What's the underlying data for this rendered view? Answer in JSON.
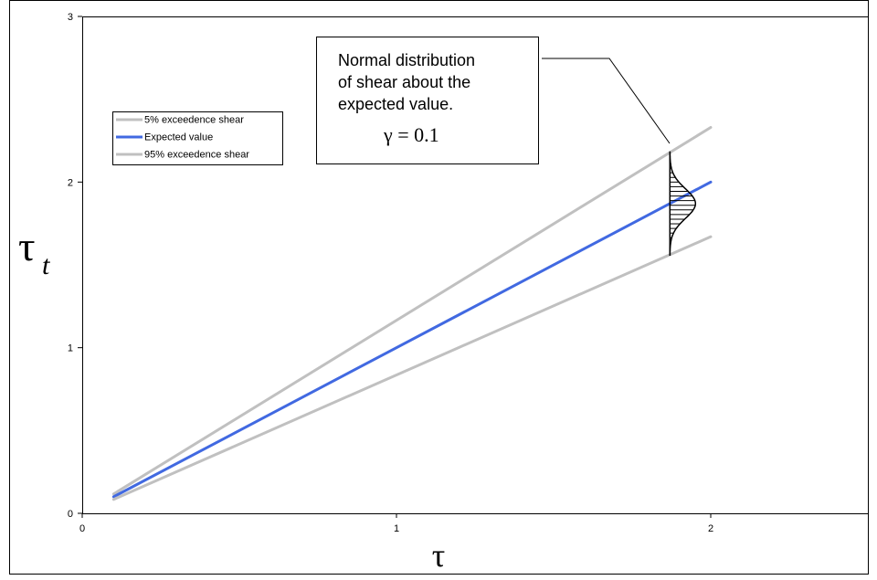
{
  "chart_data": {
    "type": "line",
    "xlabel": "τ",
    "ylabel": "τ",
    "ylabel_subscript": "t",
    "xlim": [
      0,
      2.5
    ],
    "ylim": [
      0,
      3
    ],
    "x_ticks": [
      "0",
      "1",
      "2"
    ],
    "y_ticks": [
      "0",
      "1",
      "2",
      "3"
    ],
    "grid": false,
    "legend_position": "top-left",
    "series": [
      {
        "name": "5% exceedence shear",
        "color": "#c0c0c0",
        "x": [
          0.1,
          2.0
        ],
        "y": [
          0.117,
          2.33
        ]
      },
      {
        "name": "Expected value",
        "color": "#4169e1",
        "x": [
          0.1,
          2.0
        ],
        "y": [
          0.1,
          2.0
        ]
      },
      {
        "name": "95% exceedence shear",
        "color": "#c0c0c0",
        "x": [
          0.1,
          2.0
        ],
        "y": [
          0.084,
          1.67
        ]
      }
    ],
    "distribution": {
      "x_center": 1.87,
      "mean": 1.87,
      "sd": 0.09,
      "sigma_range": 3.5
    },
    "annotation": {
      "lines": [
        "Normal distribution",
        "of shear about the",
        "expected value."
      ],
      "formula": "γ = 0.1"
    }
  }
}
